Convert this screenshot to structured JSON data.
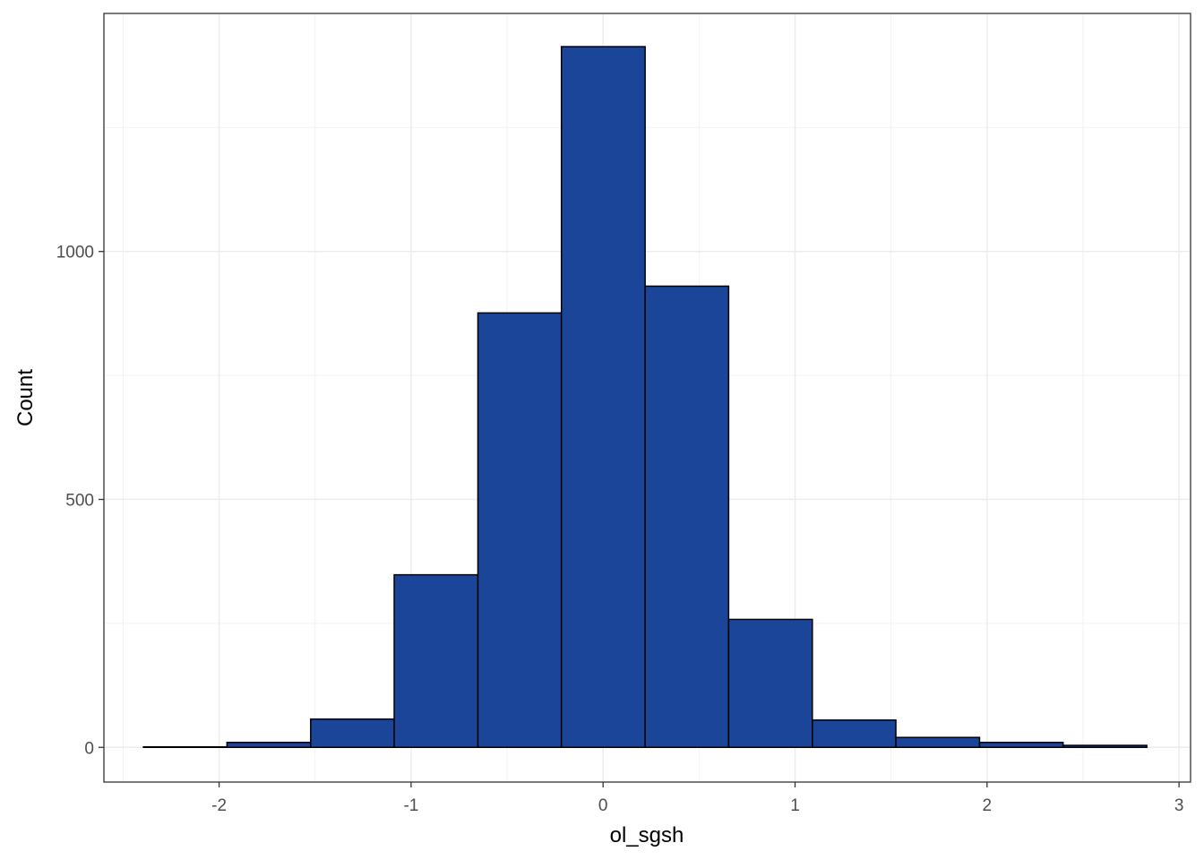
{
  "chart_data": {
    "type": "bar",
    "subtype": "histogram",
    "title": "",
    "xlabel": "ol_sgsh",
    "ylabel": "Count",
    "xlim": [
      -2.6,
      3.06
    ],
    "ylim": [
      -70,
      1480
    ],
    "x_ticks": [
      -2,
      -1,
      0,
      1,
      2,
      3
    ],
    "x_tick_labels": [
      "-2",
      "-1",
      "0",
      "1",
      "2",
      "3"
    ],
    "y_ticks": [
      0,
      500,
      1000
    ],
    "y_tick_labels": [
      "0",
      "500",
      "1000"
    ],
    "grid": true,
    "theme": "bw",
    "bin_width": 0.4355,
    "bins": [
      {
        "x0": -2.394,
        "x1": -1.959,
        "count": 1
      },
      {
        "x0": -1.959,
        "x1": -1.523,
        "count": 10
      },
      {
        "x0": -1.523,
        "x1": -1.088,
        "count": 57
      },
      {
        "x0": -1.088,
        "x1": -0.652,
        "count": 348
      },
      {
        "x0": -0.652,
        "x1": -0.217,
        "count": 876
      },
      {
        "x0": -0.217,
        "x1": 0.219,
        "count": 1413
      },
      {
        "x0": 0.219,
        "x1": 0.654,
        "count": 930
      },
      {
        "x0": 0.654,
        "x1": 1.09,
        "count": 258
      },
      {
        "x0": 1.09,
        "x1": 1.525,
        "count": 55
      },
      {
        "x0": 1.525,
        "x1": 1.961,
        "count": 20
      },
      {
        "x0": 1.961,
        "x1": 2.396,
        "count": 10
      },
      {
        "x0": 2.396,
        "x1": 2.832,
        "count": 4
      }
    ],
    "fill_color": "#1a4599",
    "edge_color": "#000000"
  }
}
